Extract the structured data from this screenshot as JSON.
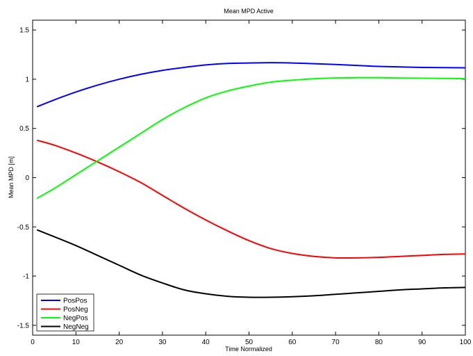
{
  "chart_data": {
    "type": "line",
    "title": "Mean MPD Active",
    "xlabel": "Time Normalized",
    "ylabel": "Mean MPD [m]",
    "xlim": [
      0,
      100
    ],
    "ylim": [
      -1.6,
      1.6
    ],
    "xticks": [
      "0",
      "10",
      "20",
      "30",
      "40",
      "50",
      "60",
      "70",
      "80",
      "90",
      "100"
    ],
    "yticks": [
      "-1.5",
      "-1",
      "-0.5",
      "0",
      "0.5",
      "1",
      "1.5"
    ],
    "ytick_values": [
      -1.5,
      -1,
      -0.5,
      0,
      0.5,
      1,
      1.5
    ],
    "grid": false,
    "legend_position": "bottom-left",
    "x": [
      1,
      5,
      10,
      15,
      20,
      25,
      30,
      35,
      40,
      45,
      50,
      55,
      60,
      65,
      70,
      75,
      80,
      85,
      90,
      95,
      100
    ],
    "series": [
      {
        "name": "PosPos",
        "color": "#0000ff",
        "values": [
          0.72,
          0.79,
          0.87,
          0.94,
          1.0,
          1.05,
          1.09,
          1.12,
          1.145,
          1.16,
          1.165,
          1.168,
          1.165,
          1.158,
          1.15,
          1.14,
          1.13,
          1.125,
          1.12,
          1.118,
          1.116
        ]
      },
      {
        "name": "PosNeg",
        "color": "#ff0000",
        "values": [
          0.38,
          0.33,
          0.25,
          0.16,
          0.06,
          -0.05,
          -0.18,
          -0.31,
          -0.43,
          -0.54,
          -0.64,
          -0.72,
          -0.77,
          -0.8,
          -0.815,
          -0.815,
          -0.81,
          -0.8,
          -0.79,
          -0.78,
          -0.775
        ]
      },
      {
        "name": "NegPos",
        "color": "#00ff00",
        "values": [
          -0.21,
          -0.11,
          0.03,
          0.17,
          0.31,
          0.45,
          0.59,
          0.71,
          0.81,
          0.88,
          0.93,
          0.97,
          0.99,
          1.005,
          1.013,
          1.015,
          1.015,
          1.012,
          1.01,
          1.008,
          1.006
        ]
      },
      {
        "name": "NegNeg",
        "color": "#000000",
        "values": [
          -0.53,
          -0.6,
          -0.69,
          -0.79,
          -0.89,
          -0.99,
          -1.07,
          -1.14,
          -1.18,
          -1.205,
          -1.215,
          -1.215,
          -1.21,
          -1.2,
          -1.185,
          -1.17,
          -1.155,
          -1.14,
          -1.13,
          -1.12,
          -1.115
        ]
      }
    ]
  }
}
